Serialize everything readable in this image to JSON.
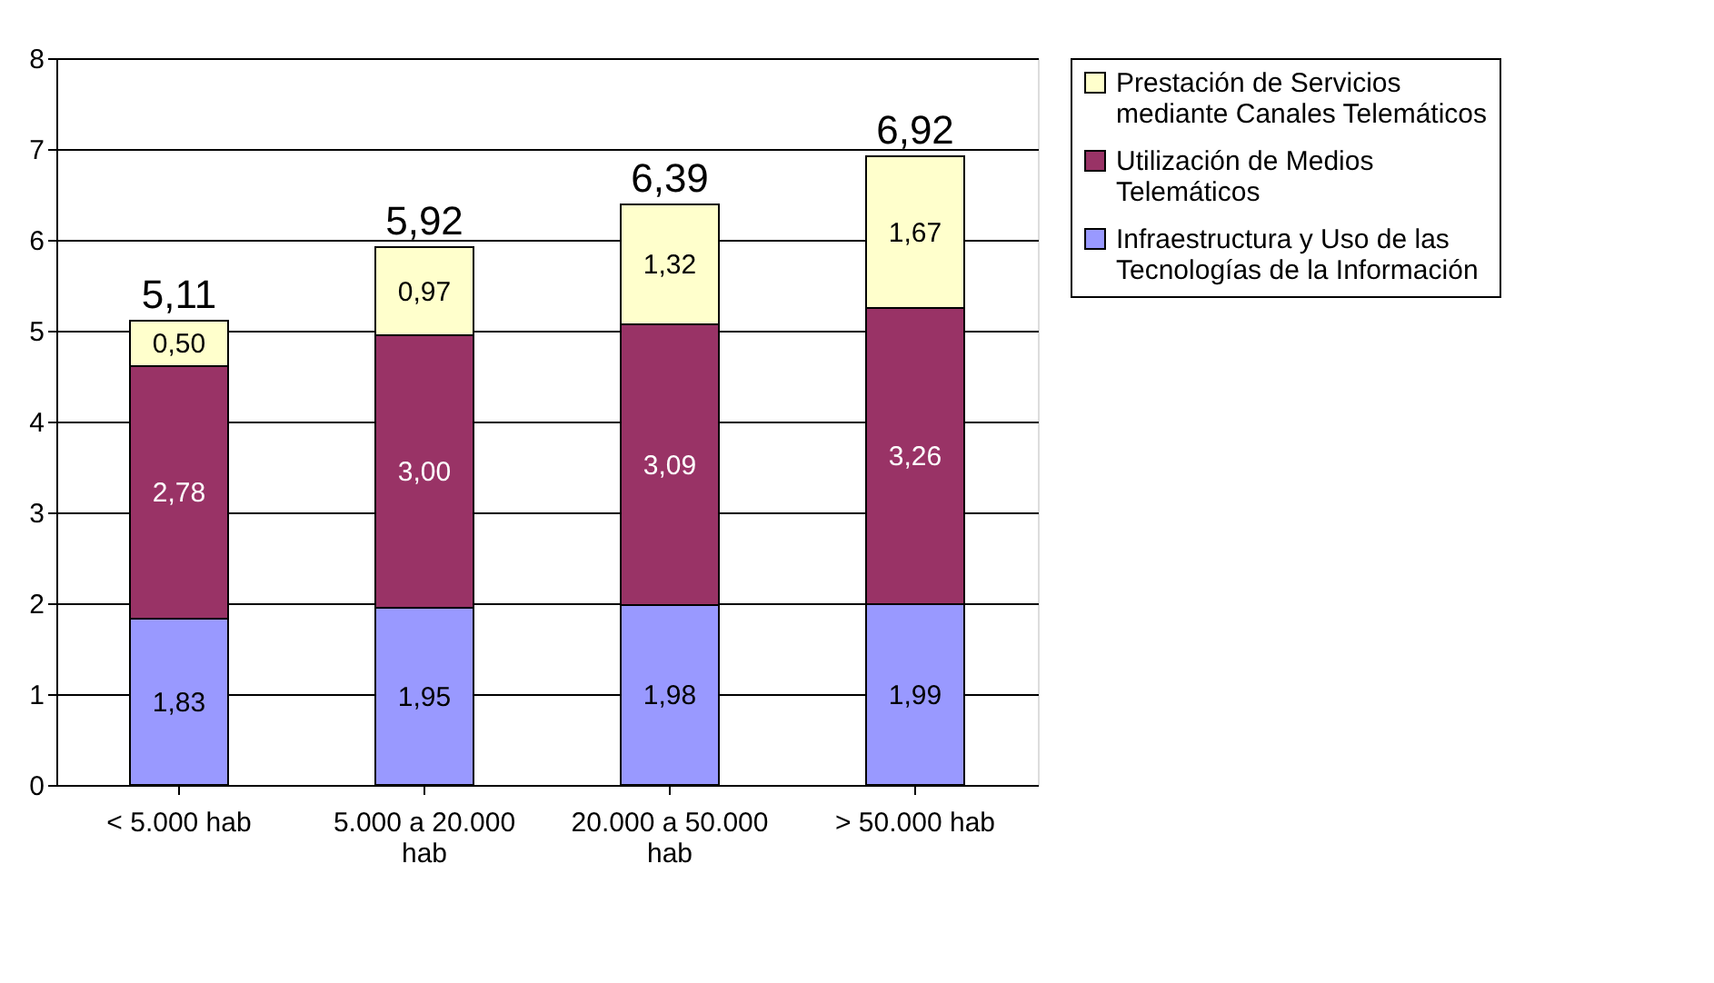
{
  "chart_data": {
    "type": "bar",
    "stacked": true,
    "categories": [
      "< 5.000 hab",
      "5.000 a 20.000 hab",
      "20.000 a 50.000 hab",
      "> 50.000 hab"
    ],
    "series": [
      {
        "name": "Infraestructura y Uso de las Tecnologías de la Información",
        "color": "#9999ff",
        "values": [
          1.83,
          1.95,
          1.98,
          1.99
        ],
        "value_labels": [
          "1,83",
          "1,95",
          "1,98",
          "1,99"
        ]
      },
      {
        "name": "Utilización de Medios Telemáticos",
        "color": "#993366",
        "values": [
          2.78,
          3.0,
          3.09,
          3.26
        ],
        "value_labels": [
          "2,78",
          "3,00",
          "3,09",
          "3,26"
        ]
      },
      {
        "name": "Prestación de Servicios mediante Canales Telemáticos",
        "color": "#ffffcc",
        "values": [
          0.5,
          0.97,
          1.32,
          1.67
        ],
        "value_labels": [
          "0,50",
          "0,97",
          "1,32",
          "1,67"
        ]
      }
    ],
    "totals": [
      "5,11",
      "5,92",
      "6,39",
      "6,92"
    ],
    "ylim": [
      0,
      8
    ],
    "yticks": [
      0,
      1,
      2,
      3,
      4,
      5,
      6,
      7,
      8
    ],
    "grid": "y",
    "legend": "right"
  }
}
